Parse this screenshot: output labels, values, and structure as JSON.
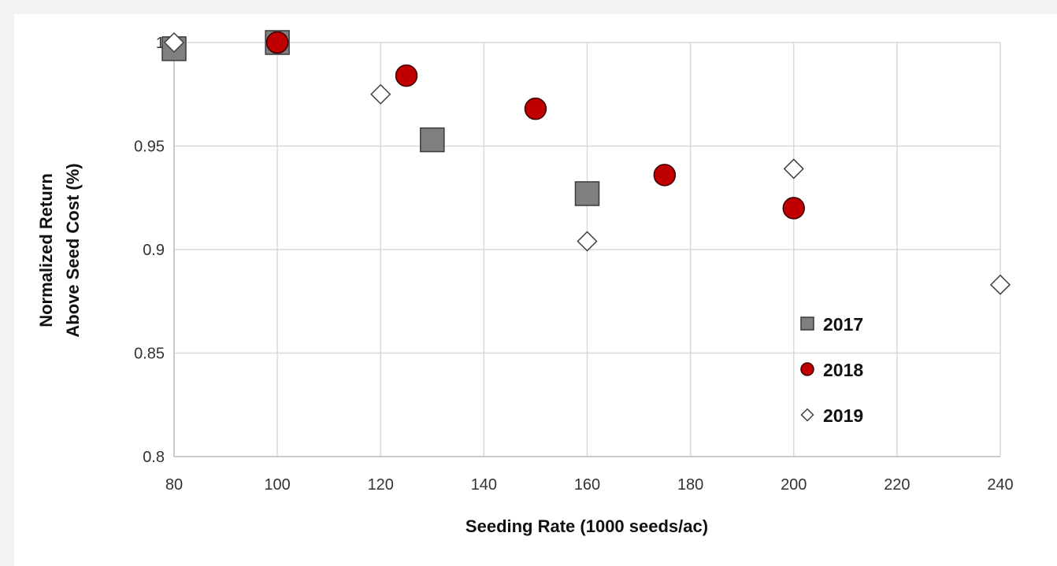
{
  "chart_data": {
    "type": "scatter",
    "title": "",
    "xlabel": "Seeding Rate  (1000 seeds/ac)",
    "ylabel_lines": [
      "Normalized Return",
      "Above Seed Cost (%)"
    ],
    "xlim": [
      80,
      240
    ],
    "ylim": [
      0.8,
      1.0
    ],
    "x_ticks": [
      80,
      100,
      120,
      140,
      160,
      180,
      200,
      220,
      240
    ],
    "x_tick_labels": [
      "80",
      "100",
      "120",
      "140",
      "160",
      "180",
      "200",
      "220",
      "240"
    ],
    "y_ticks": [
      0.8,
      0.85,
      0.9,
      0.95,
      1.0
    ],
    "y_tick_labels": [
      "0.8",
      "0.85",
      "0.9",
      "0.95",
      "1"
    ],
    "grid": true,
    "legend_position": "bottom-right",
    "series": [
      {
        "name": "2017",
        "marker": "square",
        "color": "#7f7f7f",
        "edge_color": "#3a3a3a",
        "points": [
          {
            "x": 80,
            "y": 0.997
          },
          {
            "x": 100,
            "y": 1.0
          },
          {
            "x": 130,
            "y": 0.953
          },
          {
            "x": 160,
            "y": 0.927
          }
        ]
      },
      {
        "name": "2018",
        "marker": "circle",
        "color": "#c00000",
        "edge_color": "#3a0000",
        "points": [
          {
            "x": 100,
            "y": 1.0
          },
          {
            "x": 125,
            "y": 0.984
          },
          {
            "x": 150,
            "y": 0.968
          },
          {
            "x": 175,
            "y": 0.936
          },
          {
            "x": 200,
            "y": 0.92
          }
        ]
      },
      {
        "name": "2019",
        "marker": "diamond",
        "color": "#ffffff",
        "edge_color": "#404040",
        "points": [
          {
            "x": 80,
            "y": 1.0
          },
          {
            "x": 120,
            "y": 0.975
          },
          {
            "x": 160,
            "y": 0.904
          },
          {
            "x": 200,
            "y": 0.939
          },
          {
            "x": 240,
            "y": 0.883
          }
        ]
      }
    ]
  }
}
